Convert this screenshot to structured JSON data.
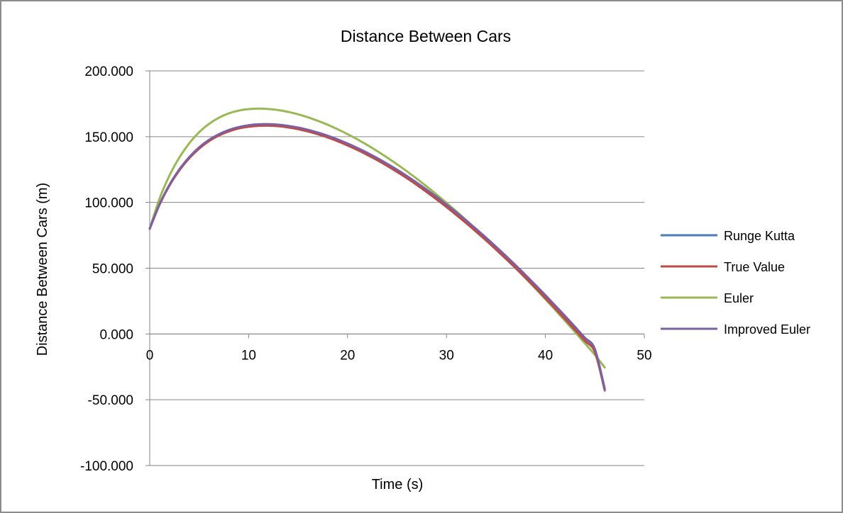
{
  "chart_data": {
    "type": "line",
    "title": "Distance Between Cars",
    "xlabel": "Time (s)",
    "ylabel": "Distance Between Cars (m)",
    "xlim": [
      0,
      50
    ],
    "ylim": [
      -100,
      200
    ],
    "x_ticks": [
      "0",
      "10",
      "20",
      "30",
      "40",
      "50"
    ],
    "y_ticks": [
      "-100.000",
      "-50.000",
      "0.000",
      "50.000",
      "100.000",
      "150.000",
      "200.000"
    ],
    "grid": "horizontal",
    "legend_position": "right",
    "x": [
      0,
      1,
      2,
      3,
      4,
      5,
      6,
      7,
      8,
      9,
      10,
      11,
      12,
      13,
      14,
      15,
      16,
      17,
      18,
      19,
      20,
      21,
      22,
      23,
      24,
      25,
      26,
      27,
      28,
      29,
      30,
      31,
      32,
      33,
      34,
      35,
      36,
      37,
      38,
      39,
      40,
      41,
      42,
      43,
      44,
      45,
      46
    ],
    "series": [
      {
        "name": "Runge Kutta",
        "color": "#4a7ebb",
        "values": [
          80.0,
          98.6,
          113.2,
          124.8,
          134.1,
          141.5,
          147.2,
          151.5,
          154.7,
          156.9,
          158.3,
          159.0,
          159.1,
          158.7,
          157.8,
          156.5,
          154.8,
          152.7,
          150.3,
          147.5,
          144.4,
          141.0,
          137.3,
          133.3,
          129.0,
          124.5,
          119.7,
          114.6,
          109.3,
          103.8,
          98.0,
          92.0,
          85.8,
          79.4,
          72.8,
          66.0,
          59.0,
          51.8,
          44.4,
          36.8,
          29.1,
          21.2,
          13.2,
          5.0,
          -3.3,
          -11.8,
          -41.5
        ]
      },
      {
        "name": "True Value",
        "color": "#be4b48",
        "values": [
          80.0,
          98.4,
          112.9,
          124.4,
          133.6,
          140.9,
          146.6,
          150.9,
          154.0,
          156.2,
          157.5,
          158.2,
          158.3,
          157.9,
          157.0,
          155.7,
          153.9,
          151.8,
          149.3,
          146.5,
          143.3,
          139.9,
          136.1,
          132.1,
          127.8,
          123.2,
          118.4,
          113.3,
          107.9,
          102.3,
          96.5,
          90.4,
          84.2,
          77.7,
          71.1,
          64.2,
          57.2,
          50.0,
          42.5,
          35.0,
          27.2,
          19.3,
          11.2,
          3.0,
          -5.3,
          -13.8,
          -43.0
        ]
      },
      {
        "name": "Euler",
        "color": "#98b954",
        "values": [
          80.0,
          103.0,
          120.5,
          134.2,
          145.0,
          153.4,
          159.7,
          164.4,
          167.7,
          169.8,
          170.9,
          171.3,
          171.0,
          170.2,
          168.8,
          167.0,
          164.7,
          162.0,
          159.0,
          155.6,
          151.9,
          147.9,
          143.6,
          139.0,
          134.1,
          129.0,
          123.6,
          118.0,
          112.1,
          106.0,
          99.7,
          93.2,
          86.5,
          79.6,
          72.5,
          65.2,
          57.8,
          50.2,
          42.4,
          34.5,
          26.4,
          18.2,
          9.9,
          1.4,
          -7.2,
          -15.9,
          -25.5
        ]
      },
      {
        "name": "Improved Euler",
        "color": "#7d60a0",
        "values": [
          80.0,
          98.8,
          113.5,
          125.2,
          134.5,
          141.9,
          147.6,
          151.9,
          155.1,
          157.3,
          158.7,
          159.4,
          159.5,
          159.1,
          158.2,
          156.9,
          155.2,
          153.1,
          150.7,
          147.9,
          144.8,
          141.4,
          137.7,
          133.7,
          129.4,
          124.9,
          120.1,
          115.0,
          109.7,
          104.2,
          98.4,
          92.4,
          86.2,
          79.8,
          73.2,
          66.4,
          59.4,
          52.2,
          44.8,
          37.2,
          29.5,
          21.6,
          13.6,
          5.4,
          -2.9,
          -11.4,
          -42.0
        ]
      }
    ]
  }
}
